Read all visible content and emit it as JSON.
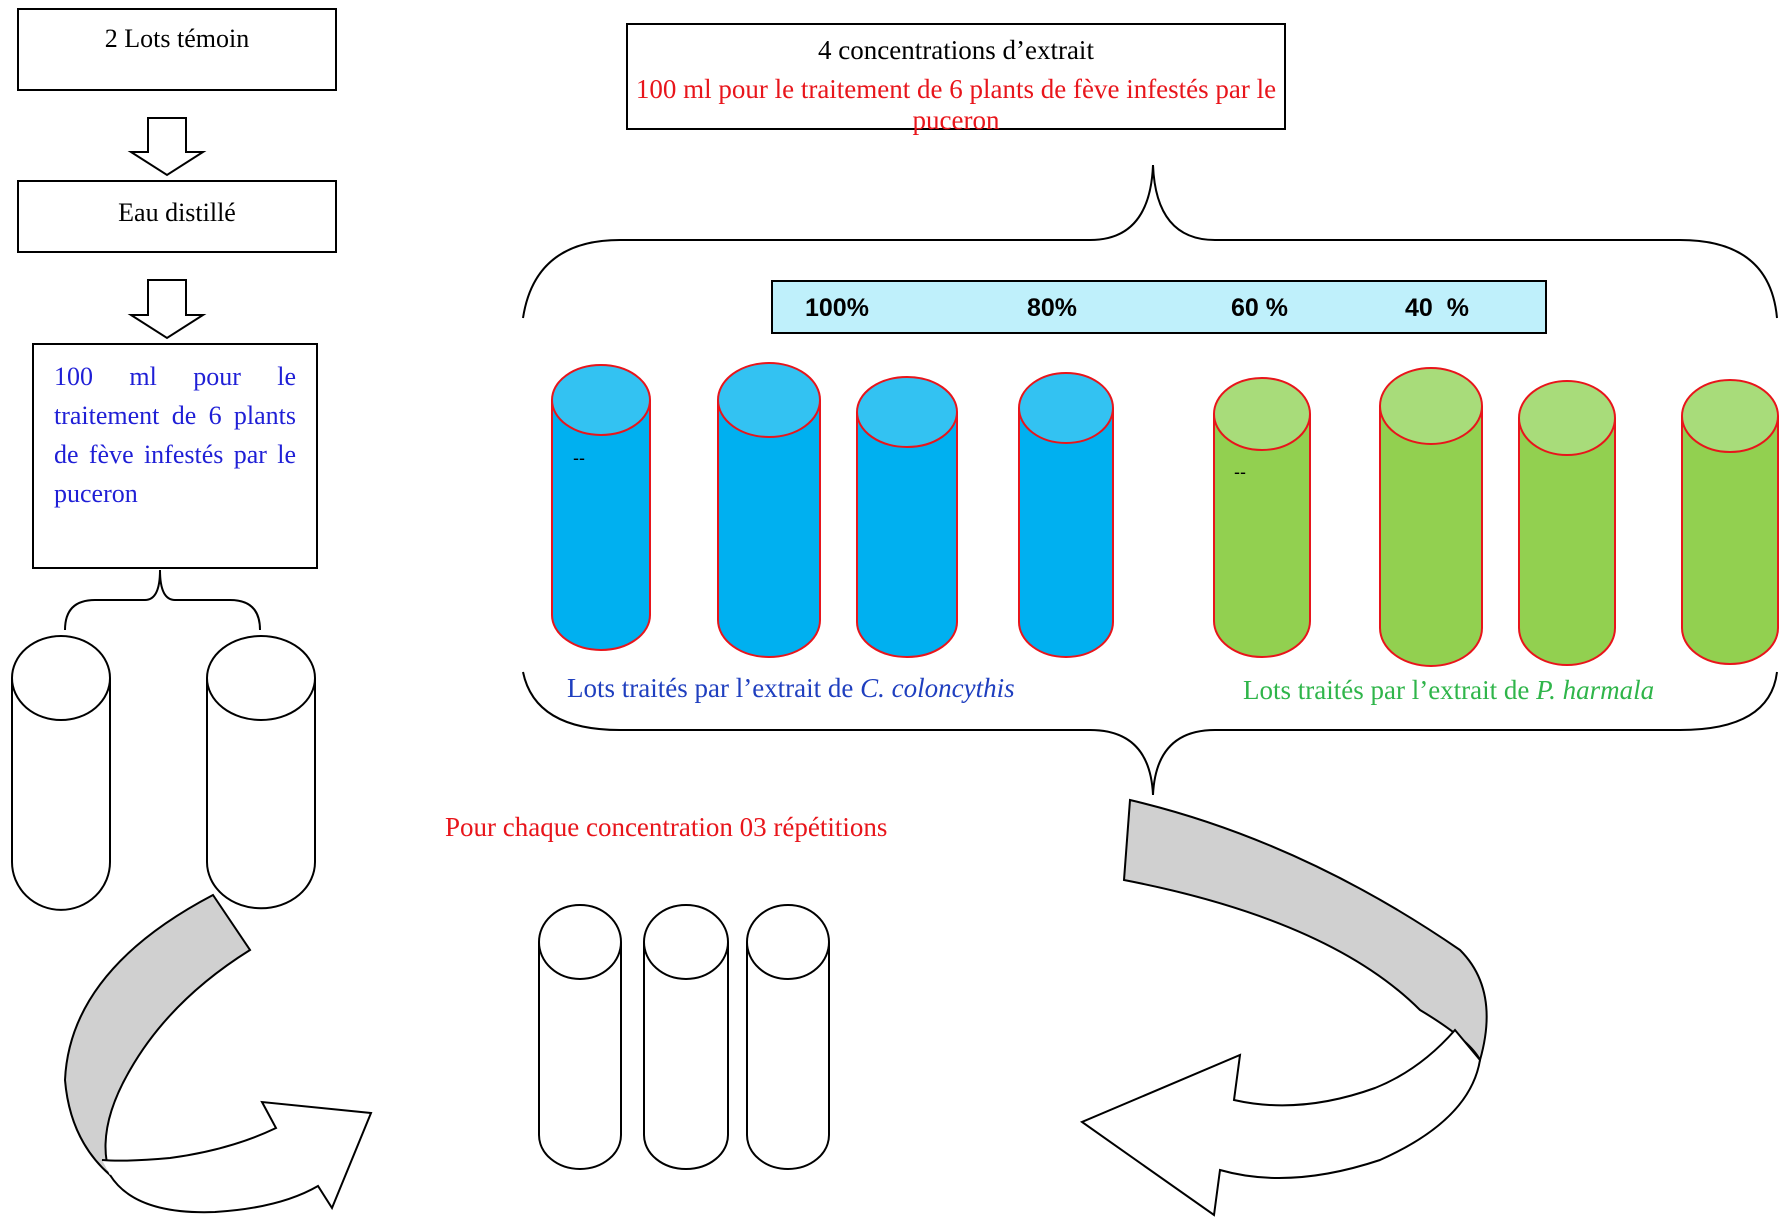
{
  "control": {
    "title": "2 Lots témoin",
    "water": "Eau distillé",
    "treatment": "100 ml pour le traitement de 6 plants de fève infestés par le puceron"
  },
  "extract": {
    "title": "4 concentrations d’extrait",
    "treatment": "100 ml pour le traitement de 6 plants de fève infestés par le puceron"
  },
  "concentrations": [
    "100%",
    "80%",
    "60 %",
    "40  %"
  ],
  "groups": {
    "colocynthis_prefix": "Lots traités par l’extrait de ",
    "colocynthis_species": "C. coloncythis",
    "harmala_prefix": "Lots traités par l’extrait de ",
    "harmala_species": "P. harmala"
  },
  "repetitions": "Pour chaque concentration 03 répétitions",
  "tube_marks": [
    "--",
    "--"
  ],
  "colors": {
    "blue_tube": "#00b0f0",
    "blue_tube_top": "#33c2f2",
    "green_tube": "#92d050",
    "green_tube_top": "#a8dc7a",
    "tube_outline": "#e8151b",
    "percent_bar": "#bff0fb",
    "ribbon_arrow": "#d0d0d0",
    "red_text": "#e8151b",
    "blue_text": "#1f3fbf",
    "green_text": "#2fb54a"
  }
}
